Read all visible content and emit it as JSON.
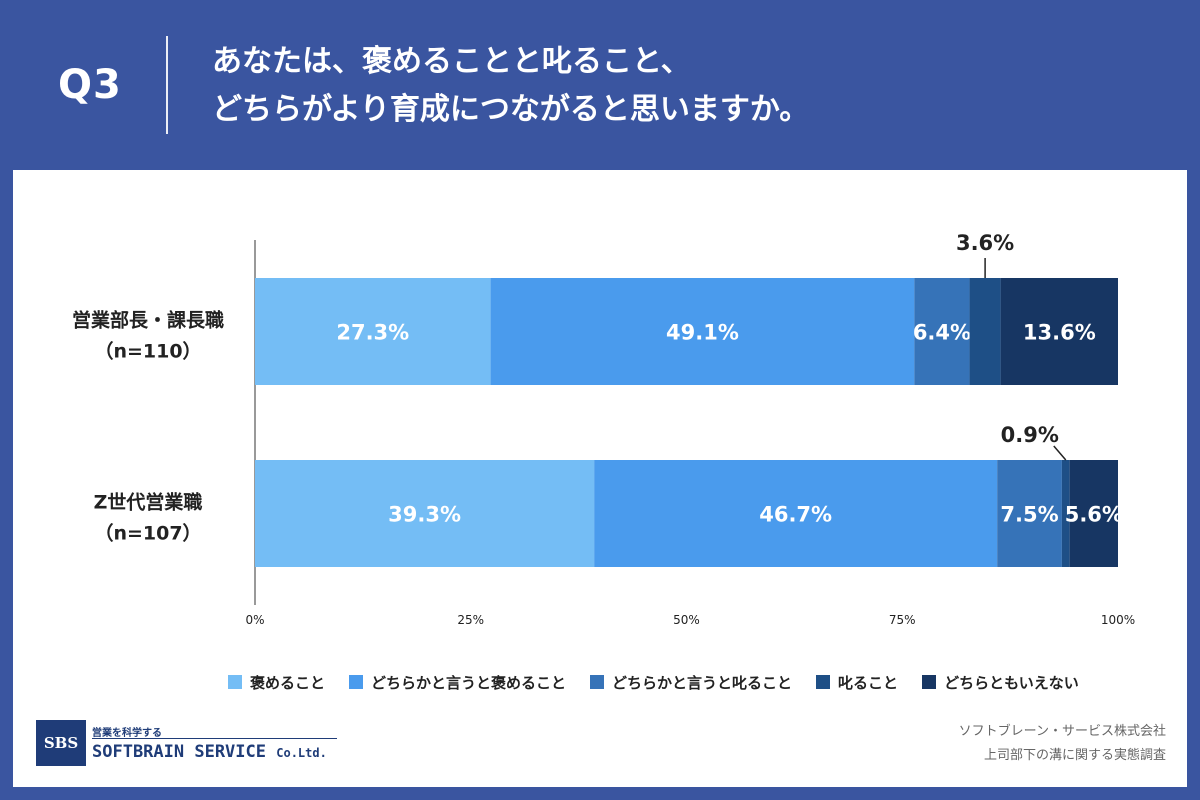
{
  "header": {
    "q_label": "Q3",
    "question_line1": "あなたは、褒めることと叱ること、",
    "question_line2": "どちらがより育成につながると思いますか。"
  },
  "colors": {
    "background": "#3a55a0",
    "segments": [
      "#74bdf5",
      "#4a9bed",
      "#3673b8",
      "#1e4f86",
      "#173663"
    ]
  },
  "chart_data": {
    "type": "bar",
    "orientation": "horizontal",
    "stacked": true,
    "categories": [
      {
        "line1": "営業部長・課長職",
        "line2": "（n=110）"
      },
      {
        "line1": "Z世代営業職",
        "line2": "（n=107）"
      }
    ],
    "series": [
      {
        "name": "褒めること",
        "values": [
          27.3,
          39.3
        ],
        "labels": [
          "27.3%",
          "39.3%"
        ]
      },
      {
        "name": "どちらかと言うと褒めること",
        "values": [
          49.1,
          46.7
        ],
        "labels": [
          "49.1%",
          "46.7%"
        ]
      },
      {
        "name": "どちらかと言うと叱ること",
        "values": [
          6.4,
          7.5
        ],
        "labels": [
          "6.4%",
          "7.5%"
        ]
      },
      {
        "name": "叱ること",
        "values": [
          3.6,
          0.9
        ],
        "labels": [
          "3.6%",
          "0.9%"
        ]
      },
      {
        "name": "どちらともいえない",
        "values": [
          13.6,
          5.6
        ],
        "labels": [
          "13.6%",
          "5.6%"
        ]
      }
    ],
    "xlim": [
      0,
      100
    ],
    "x_ticks": [
      "0%",
      "25%",
      "50%",
      "75%",
      "100%"
    ],
    "legend_position": "bottom"
  },
  "footer": {
    "logo_box": "SBS",
    "logo_sub": "営業を科学する",
    "logo_main": "SOFTBRAIN SERVICE",
    "logo_suffix": "Co.Ltd.",
    "source_line1": "ソフトブレーン・サービス株式会社",
    "source_line2": "上司部下の溝に関する実態調査"
  }
}
